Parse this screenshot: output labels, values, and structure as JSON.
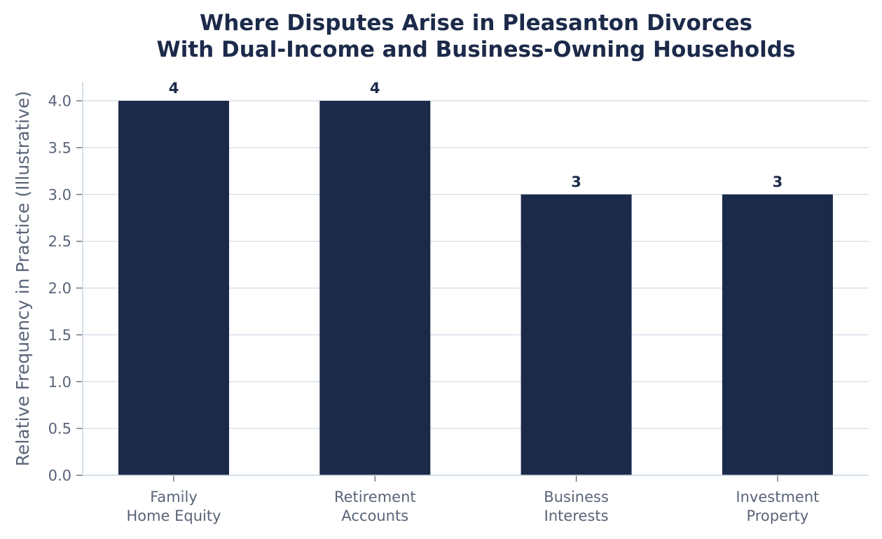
{
  "chart_data": {
    "type": "bar",
    "title": [
      "Where Disputes Arise in Pleasanton Divorces",
      "With Dual-Income and Business-Owning Households"
    ],
    "xlabel": "",
    "ylabel": "Relative Frequency in Practice (Illustrative)",
    "categories": [
      [
        "Family",
        "Home Equity"
      ],
      [
        "Retirement",
        "Accounts"
      ],
      [
        "Business",
        "Interests"
      ],
      [
        "Investment",
        "Property"
      ]
    ],
    "values": [
      4,
      4,
      3,
      3
    ],
    "data_labels": [
      "4",
      "4",
      "3",
      "3"
    ],
    "ylim": [
      0,
      4.2
    ],
    "yticks": [
      0,
      0.5,
      1,
      1.5,
      2,
      2.5,
      3,
      3.5,
      4
    ],
    "ytick_labels": [
      "0.0",
      "0.5",
      "1.0",
      "1.5",
      "2.0",
      "2.5",
      "3.0",
      "3.5",
      "4.0"
    ],
    "grid": "horizontal",
    "legend": "none",
    "colors": {
      "bar": "#1c2a4a",
      "grid": "#d3dbe6",
      "axis": "#c9d3e0",
      "tick_text": "#5a6478",
      "label_text": "#1c2a4a"
    }
  }
}
